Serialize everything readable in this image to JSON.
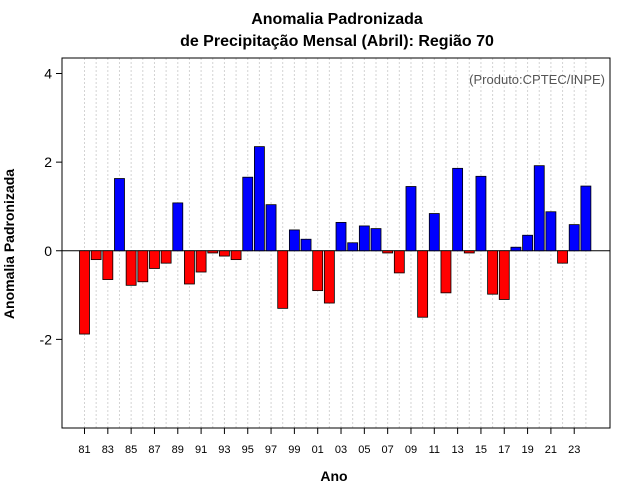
{
  "chart_data": {
    "type": "bar",
    "title_line1": "Anomalia Padronizada",
    "title_line2": "de Precipitação Mensal (Abril): Região 70",
    "credit": "(Produto:CPTEC/INPE)",
    "xlabel": "Ano",
    "ylabel": "Anomalia Padronizada",
    "ylim": [
      -4,
      4.35
    ],
    "yticks": [
      -2,
      0,
      2,
      4
    ],
    "ytick_labels": [
      "-2",
      "0",
      "2",
      "4"
    ],
    "categories": [
      "81",
      "82",
      "83",
      "84",
      "85",
      "86",
      "87",
      "88",
      "89",
      "90",
      "91",
      "92",
      "93",
      "94",
      "95",
      "96",
      "97",
      "98",
      "99",
      "00",
      "01",
      "02",
      "03",
      "04",
      "05",
      "06",
      "07",
      "08",
      "09",
      "10",
      "11",
      "12",
      "13",
      "14",
      "15",
      "16",
      "17",
      "18",
      "19",
      "20",
      "21",
      "22",
      "23",
      "24"
    ],
    "xtick_labels": [
      "81",
      "83",
      "85",
      "87",
      "89",
      "91",
      "93",
      "95",
      "97",
      "99",
      "01",
      "03",
      "05",
      "07",
      "09",
      "11",
      "13",
      "15",
      "17",
      "19",
      "21",
      "23"
    ],
    "values": [
      -1.88,
      -0.2,
      -0.65,
      1.63,
      -0.78,
      -0.7,
      -0.4,
      -0.28,
      1.08,
      -0.75,
      -0.48,
      -0.05,
      -0.12,
      -0.2,
      1.66,
      2.35,
      1.04,
      -1.3,
      0.47,
      0.26,
      -0.9,
      -1.18,
      0.64,
      0.18,
      0.56,
      0.5,
      -0.05,
      -0.5,
      1.45,
      -1.5,
      0.84,
      -0.95,
      1.86,
      -0.05,
      1.68,
      -0.98,
      -1.1,
      0.08,
      0.35,
      1.92,
      0.88,
      -0.28,
      0.59,
      1.46
    ],
    "colors": {
      "positive": "#0000ff",
      "negative": "#ff0000",
      "outline": "#000000",
      "grid": "#d3d3d3"
    }
  }
}
